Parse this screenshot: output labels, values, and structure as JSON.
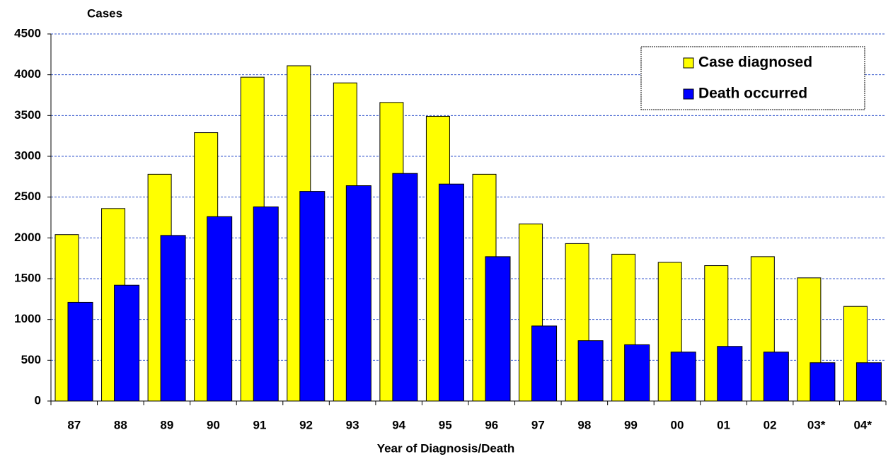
{
  "chart_data": {
    "type": "bar",
    "y_label": "Cases",
    "x_label": "Year of Diagnosis/Death",
    "categories": [
      "87",
      "88",
      "89",
      "90",
      "91",
      "92",
      "93",
      "94",
      "95",
      "96",
      "97",
      "98",
      "99",
      "00",
      "01",
      "02",
      "03*",
      "04*"
    ],
    "series": [
      {
        "name": "Case diagnosed",
        "color": "#ffff00",
        "values": [
          2040,
          2360,
          2780,
          3290,
          3970,
          4110,
          3900,
          3660,
          3490,
          2780,
          2170,
          1930,
          1800,
          1700,
          1660,
          1770,
          1510,
          1160
        ]
      },
      {
        "name": "Death occurred",
        "color": "#0000ff",
        "values": [
          1210,
          1420,
          2030,
          2260,
          2380,
          2570,
          2640,
          2790,
          2660,
          1770,
          920,
          740,
          690,
          600,
          670,
          600,
          470,
          470
        ]
      }
    ],
    "ylim": [
      0,
      4500
    ],
    "yticks": [
      0,
      500,
      1000,
      1500,
      2000,
      2500,
      3000,
      3500,
      4000,
      4500
    ],
    "grid": true,
    "legend": "upper right"
  }
}
